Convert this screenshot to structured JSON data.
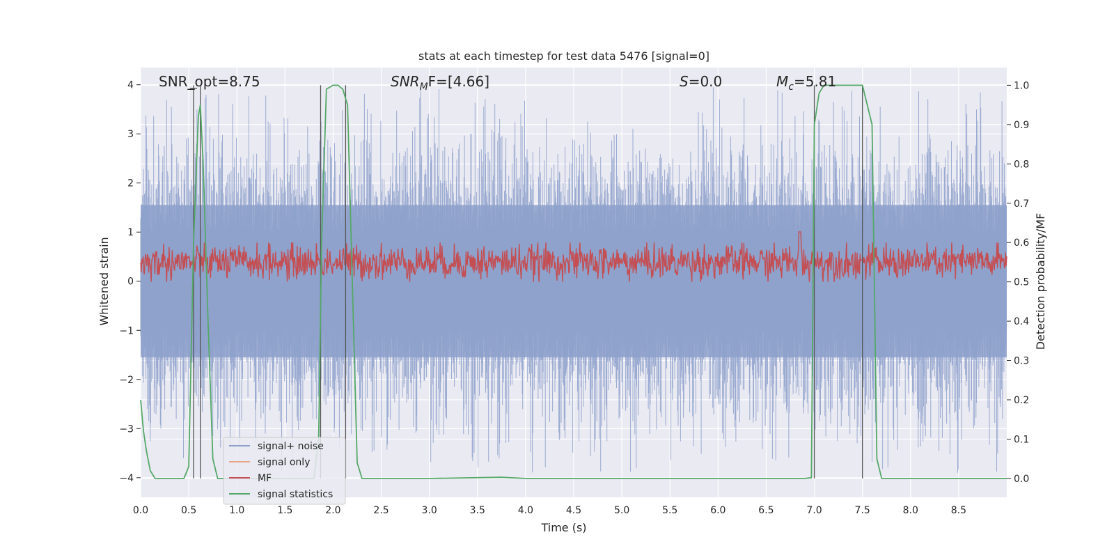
{
  "chart_data": {
    "type": "line",
    "title": "stats at each timestep for test data 5476 [signal=0]",
    "xlabel": "Time (s)",
    "ylabel_left": "Whitened strain",
    "ylabel_right": "Detection probability/MF",
    "xlim": [
      0.0,
      9.0
    ],
    "ylim_left": [
      -4.4,
      4.35
    ],
    "ylim_right": [
      -0.048,
      1.045
    ],
    "x_ticks": [
      0.0,
      0.5,
      1.0,
      1.5,
      2.0,
      2.5,
      3.0,
      3.5,
      4.0,
      4.5,
      5.0,
      5.5,
      6.0,
      6.5,
      7.0,
      7.5,
      8.0,
      8.5
    ],
    "x_tick_labels": [
      "0.0",
      "0.5",
      "1.0",
      "1.5",
      "2.0",
      "2.5",
      "3.0",
      "3.5",
      "4.0",
      "4.5",
      "5.0",
      "5.5",
      "6.0",
      "6.5",
      "7.0",
      "7.5",
      "8.0",
      "8.5"
    ],
    "y_left_ticks": [
      4,
      3,
      2,
      1,
      0,
      -1,
      -2,
      -3,
      -4
    ],
    "y_left_tick_labels": [
      "4",
      "3",
      "2",
      "1",
      "0",
      "−1",
      "−2",
      "−3",
      "−4"
    ],
    "y_right_ticks": [
      1.0,
      0.9,
      0.8,
      0.7,
      0.6,
      0.5,
      0.4,
      0.3,
      0.2,
      0.1,
      0.0
    ],
    "y_right_tick_labels": [
      "1.0",
      "0.9",
      "0.8",
      "0.7",
      "0.6",
      "0.5",
      "0.4",
      "0.3",
      "0.2",
      "0.1",
      "0.0"
    ],
    "grid": true,
    "legend_placement": "lower-left",
    "annotations": {
      "snr_opt": "SNR_opt=8.75",
      "snr_mf_label": "SNR",
      "snr_mf_sub": "M",
      "snr_mf_value": "F=[4.66]",
      "s_label": "S",
      "s_value": "=0.0",
      "mc_label": "M",
      "mc_sub": "c",
      "mc_value": "=5.81"
    },
    "series": [
      {
        "name": "signal+ noise",
        "axis": "left",
        "color": "#8da0cb",
        "description_values": "whitened strain noise, dense, amplitude mostly within -2.3..2.3 with peaks to about ±3.9",
        "envelope": {
          "upper_typical": 2.3,
          "lower_typical": -2.3,
          "max": 3.95,
          "min": -3.9
        }
      },
      {
        "name": "signal only",
        "axis": "left",
        "color": "#e8a58a",
        "values": []
      },
      {
        "name": "MF",
        "axis": "right",
        "color": "#c44e52",
        "envelope": {
          "mean": 0.55,
          "low": 0.5,
          "high": 0.6,
          "max": 0.627
        }
      },
      {
        "name": "signal statistics",
        "axis": "right",
        "color": "#55a868",
        "x": [
          0.0,
          0.03,
          0.06,
          0.1,
          0.15,
          0.25,
          0.45,
          0.5,
          0.55,
          0.6,
          0.62,
          0.65,
          0.7,
          0.75,
          0.8,
          0.9,
          1.5,
          1.8,
          1.85,
          1.88,
          1.93,
          2.0,
          2.05,
          2.1,
          2.15,
          2.25,
          2.3,
          3.0,
          3.75,
          4.0,
          6.9,
          6.97,
          7.0,
          7.05,
          7.1,
          7.2,
          7.5,
          7.55,
          7.6,
          7.65,
          7.7,
          8.0,
          9.0
        ],
        "y": [
          0.2,
          0.12,
          0.07,
          0.02,
          0.0,
          0.0,
          0.0,
          0.03,
          0.6,
          0.92,
          0.95,
          0.8,
          0.4,
          0.05,
          0.0,
          0.0,
          0.0,
          0.0,
          0.1,
          0.6,
          0.99,
          1.0,
          1.0,
          0.99,
          0.95,
          0.04,
          0.0,
          0.0,
          0.003,
          0.0,
          0.0,
          0.002,
          0.9,
          0.98,
          1.0,
          1.0,
          1.0,
          0.95,
          0.9,
          0.05,
          0.0,
          0.0,
          0.0
        ]
      }
    ],
    "vertical_markers": [
      0.55,
      0.62,
      1.87,
      2.13,
      7.0,
      7.5
    ],
    "small_marker_x": 0.55
  }
}
